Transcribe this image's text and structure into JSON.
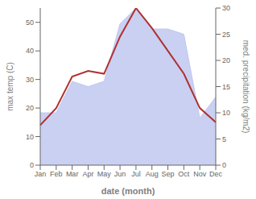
{
  "chart_data": {
    "type": "line",
    "categories": [
      "Jan",
      "Feb",
      "Mar",
      "Apr",
      "May",
      "Jun",
      "Jul",
      "Aug",
      "Sep",
      "Oct",
      "Nov",
      "Dec"
    ],
    "xlabel": "date (month)",
    "ylabel": "max temp (C)",
    "y2label": "med. precipitation (kg/m2)",
    "ylim": [
      0,
      55
    ],
    "yticks": [
      0,
      10,
      20,
      30,
      40,
      50
    ],
    "y2lim": [
      0,
      30
    ],
    "y2ticks": [
      0,
      5,
      10,
      15,
      20,
      25,
      30
    ],
    "grid": false,
    "series": [
      {
        "type": "area",
        "axis": "y2",
        "color": "#c0c8f0",
        "values": [
          10,
          10,
          16,
          15,
          16,
          27,
          30,
          26,
          26,
          25,
          9,
          13
        ]
      },
      {
        "type": "line",
        "axis": "y",
        "color": "#b03030",
        "values": [
          14,
          20,
          31,
          33,
          32,
          45,
          55,
          48,
          40,
          32,
          20,
          15
        ]
      }
    ]
  }
}
